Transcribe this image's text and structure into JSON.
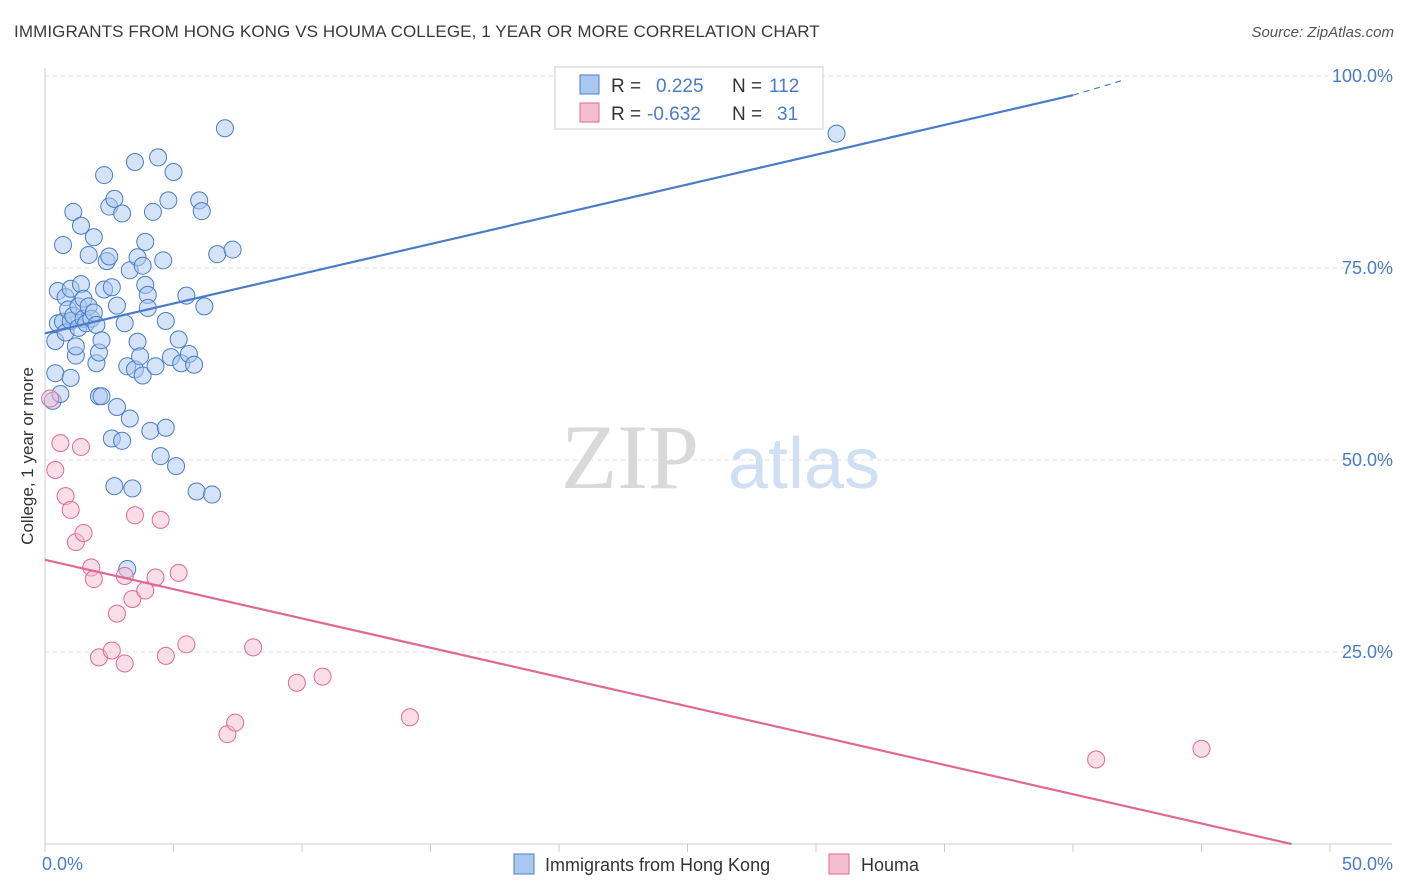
{
  "title": "IMMIGRANTS FROM HONG KONG VS HOUMA COLLEGE, 1 YEAR OR MORE CORRELATION CHART",
  "source": "Source: ZipAtlas.com",
  "watermark": {
    "zip": "ZIP",
    "atlas": "atlas"
  },
  "colors": {
    "blue": "#4a7cc9",
    "blue_fill": "#a9c8ef",
    "pink": "#e06897",
    "pink_fill": "#f5bdd0",
    "grid": "#dddddd"
  },
  "chart_data": {
    "type": "scatter",
    "xlabel": "",
    "ylabel": "College, 1 year or more",
    "xlim": [
      0,
      50
    ],
    "ylim": [
      0,
      100
    ],
    "x_tick_labels": [
      "0.0%",
      "50.0%"
    ],
    "y_ticks": [
      25,
      50,
      75,
      100
    ],
    "y_tick_labels": [
      "25.0%",
      "50.0%",
      "75.0%",
      "100.0%"
    ],
    "grid": true,
    "legend_position": "bottom",
    "correlation_box": [
      {
        "r_label": "R =",
        "r_value": "0.225",
        "n_label": "N =",
        "n_value": "112"
      },
      {
        "r_label": "R =",
        "r_value": "-0.632",
        "n_label": "N =",
        "n_value": "31"
      }
    ],
    "series": [
      {
        "name": "Immigrants from Hong Kong",
        "color": "#4a7cc9",
        "trend": {
          "x0": 0,
          "y0": 66.5,
          "x1": 40,
          "y1": 97.5,
          "dash_to_x": 42,
          "dash_to_y": 99.5
        },
        "points": [
          [
            0.3,
            57.7
          ],
          [
            0.4,
            61.3
          ],
          [
            0.4,
            65.5
          ],
          [
            0.5,
            67.8
          ],
          [
            0.5,
            72.0
          ],
          [
            0.6,
            58.6
          ],
          [
            0.7,
            68.0
          ],
          [
            0.7,
            78.0
          ],
          [
            0.8,
            71.2
          ],
          [
            0.8,
            66.6
          ],
          [
            0.9,
            69.6
          ],
          [
            1.0,
            60.7
          ],
          [
            1.0,
            68.1
          ],
          [
            1.0,
            72.3
          ],
          [
            1.1,
            68.8
          ],
          [
            1.1,
            82.3
          ],
          [
            1.2,
            63.6
          ],
          [
            1.2,
            64.8
          ],
          [
            1.3,
            70.0
          ],
          [
            1.3,
            67.2
          ],
          [
            1.4,
            72.9
          ],
          [
            1.4,
            80.5
          ],
          [
            1.5,
            68.4
          ],
          [
            1.5,
            71.0
          ],
          [
            1.6,
            67.8
          ],
          [
            1.7,
            70.0
          ],
          [
            1.7,
            76.7
          ],
          [
            1.8,
            68.4
          ],
          [
            1.9,
            69.2
          ],
          [
            1.9,
            79.0
          ],
          [
            2.0,
            62.6
          ],
          [
            2.0,
            67.6
          ],
          [
            2.1,
            58.3
          ],
          [
            2.1,
            64.0
          ],
          [
            2.2,
            65.6
          ],
          [
            2.2,
            58.3
          ],
          [
            2.3,
            87.1
          ],
          [
            2.3,
            72.2
          ],
          [
            2.4,
            75.9
          ],
          [
            2.5,
            83.0
          ],
          [
            2.5,
            76.5
          ],
          [
            2.6,
            72.5
          ],
          [
            2.6,
            52.8
          ],
          [
            2.7,
            84.0
          ],
          [
            2.7,
            46.6
          ],
          [
            2.8,
            70.1
          ],
          [
            2.8,
            56.9
          ],
          [
            3.0,
            82.1
          ],
          [
            3.0,
            52.5
          ],
          [
            3.1,
            67.8
          ],
          [
            3.2,
            62.2
          ],
          [
            3.2,
            35.8
          ],
          [
            3.3,
            74.7
          ],
          [
            3.3,
            55.4
          ],
          [
            3.4,
            46.3
          ],
          [
            3.5,
            88.8
          ],
          [
            3.5,
            61.8
          ],
          [
            3.6,
            76.4
          ],
          [
            3.6,
            65.4
          ],
          [
            3.7,
            63.5
          ],
          [
            3.8,
            75.3
          ],
          [
            3.8,
            61.0
          ],
          [
            3.9,
            78.4
          ],
          [
            3.9,
            72.8
          ],
          [
            4.0,
            71.5
          ],
          [
            4.0,
            69.8
          ],
          [
            4.1,
            53.8
          ],
          [
            4.2,
            82.3
          ],
          [
            4.3,
            62.2
          ],
          [
            4.4,
            89.4
          ],
          [
            4.5,
            50.5
          ],
          [
            4.6,
            76.0
          ],
          [
            4.7,
            68.1
          ],
          [
            4.7,
            54.2
          ],
          [
            4.8,
            83.8
          ],
          [
            4.9,
            63.4
          ],
          [
            5.0,
            87.5
          ],
          [
            5.1,
            49.2
          ],
          [
            5.2,
            65.7
          ],
          [
            5.3,
            62.6
          ],
          [
            5.5,
            71.4
          ],
          [
            5.6,
            63.8
          ],
          [
            5.8,
            62.4
          ],
          [
            5.9,
            45.9
          ],
          [
            6.0,
            83.8
          ],
          [
            6.1,
            82.4
          ],
          [
            6.2,
            70.0
          ],
          [
            6.5,
            45.5
          ],
          [
            6.7,
            76.8
          ],
          [
            7.0,
            93.2
          ],
          [
            7.3,
            77.4
          ],
          [
            30.8,
            92.5
          ]
        ]
      },
      {
        "name": "Houma",
        "color": "#e06897",
        "trend": {
          "x0": 0,
          "y0": 37.0,
          "x1": 48.5,
          "y1": 0.0
        },
        "points": [
          [
            0.2,
            58.0
          ],
          [
            0.4,
            48.7
          ],
          [
            0.6,
            52.2
          ],
          [
            0.8,
            45.3
          ],
          [
            1.0,
            43.5
          ],
          [
            1.2,
            39.3
          ],
          [
            1.4,
            51.7
          ],
          [
            1.5,
            40.5
          ],
          [
            1.8,
            36.0
          ],
          [
            1.9,
            34.5
          ],
          [
            2.1,
            24.3
          ],
          [
            2.6,
            25.2
          ],
          [
            2.8,
            30.0
          ],
          [
            3.1,
            34.9
          ],
          [
            3.1,
            23.5
          ],
          [
            3.4,
            31.9
          ],
          [
            3.5,
            42.8
          ],
          [
            3.9,
            33.0
          ],
          [
            4.3,
            34.7
          ],
          [
            4.5,
            42.2
          ],
          [
            4.7,
            24.5
          ],
          [
            5.2,
            35.3
          ],
          [
            5.5,
            26.0
          ],
          [
            7.1,
            14.3
          ],
          [
            7.4,
            15.8
          ],
          [
            8.1,
            25.6
          ],
          [
            9.8,
            21.0
          ],
          [
            10.8,
            21.8
          ],
          [
            14.2,
            16.5
          ],
          [
            40.9,
            11.0
          ],
          [
            45.0,
            12.4
          ]
        ]
      }
    ]
  }
}
